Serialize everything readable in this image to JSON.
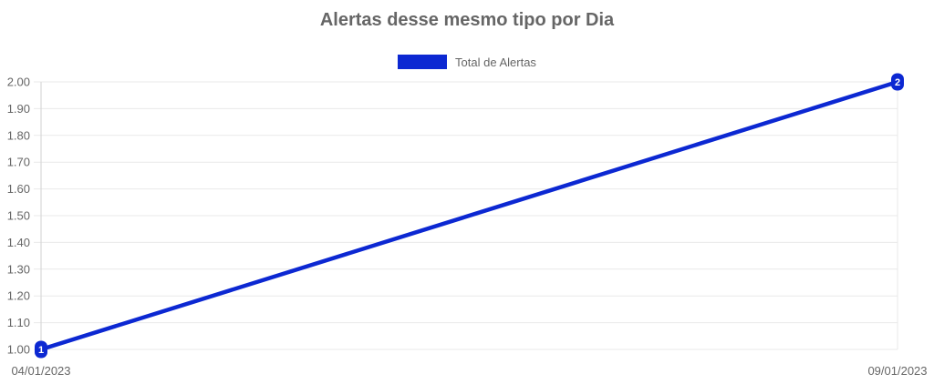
{
  "title": "Alertas desse mesmo tipo por Dia",
  "legend": {
    "items": [
      {
        "label": "Total de Alertas",
        "color": "#0c28d2"
      }
    ]
  },
  "chart_data": {
    "type": "line",
    "title": "Alertas desse mesmo tipo por Dia",
    "x": [
      "04/01/2023",
      "09/01/2023"
    ],
    "series": [
      {
        "name": "Total de Alertas",
        "color": "#0c28d2",
        "values": [
          1,
          2
        ],
        "point_labels": [
          "1",
          "2"
        ]
      }
    ],
    "xlabel": "",
    "ylabel": "",
    "ylim": [
      1.0,
      2.0
    ],
    "ytick_step": 0.1,
    "ytick_decimals": 2,
    "grid": true,
    "legend_position": "top",
    "colors": {
      "grid_line": "#e9e9e9",
      "axis_line": "#d2d2d2",
      "tick_text": "#666666",
      "title_text": "#666666",
      "point_label_text": "#ffffff"
    }
  }
}
